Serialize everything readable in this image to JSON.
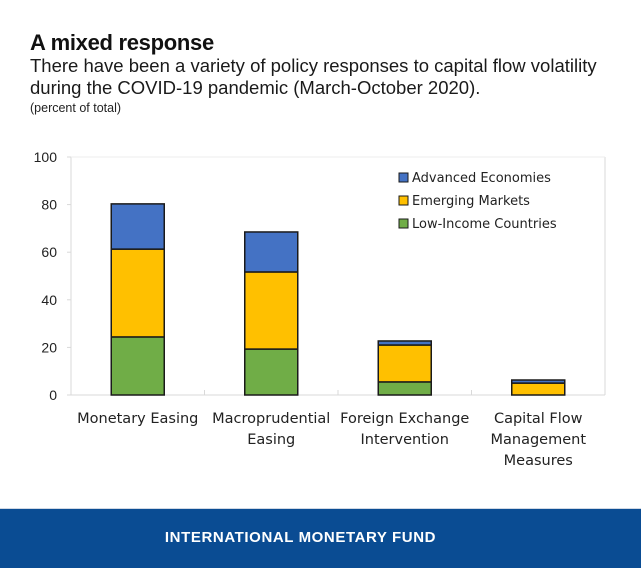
{
  "header": {
    "title": "A mixed response",
    "subtitle": "There have been a variety of policy responses to capital flow volatility during the COVID-19 pandemic (March-October 2020).",
    "unit": "(percent of total)"
  },
  "footer": {
    "text": "INTERNATIONAL MONETARY FUND"
  },
  "chart_data": {
    "type": "bar",
    "stacked": true,
    "title": "A mixed response",
    "ylabel": "percent of total",
    "xlabel": "",
    "ylim": [
      0,
      100
    ],
    "yticks": [
      0,
      20,
      40,
      60,
      80,
      100
    ],
    "grid": false,
    "legend_position": "top-right",
    "categories": [
      [
        "Monetary Easing"
      ],
      [
        "Macroprudential",
        "Easing"
      ],
      [
        "Foreign Exchange",
        "Intervention"
      ],
      [
        "Capital Flow",
        "Management",
        "Measures"
      ]
    ],
    "series": [
      {
        "name": "Low-Income Countries",
        "color": "#70ad47",
        "values": [
          24.4,
          19.3,
          5.5,
          0.0
        ]
      },
      {
        "name": "Emerging Markets",
        "color": "#ffc000",
        "values": [
          36.9,
          32.4,
          15.5,
          5.0
        ]
      },
      {
        "name": "Advanced Economies",
        "color": "#4472c4",
        "values": [
          19.0,
          16.8,
          1.7,
          1.3
        ]
      }
    ],
    "legend_order": [
      "Advanced Economies",
      "Emerging Markets",
      "Low-Income Countries"
    ]
  }
}
